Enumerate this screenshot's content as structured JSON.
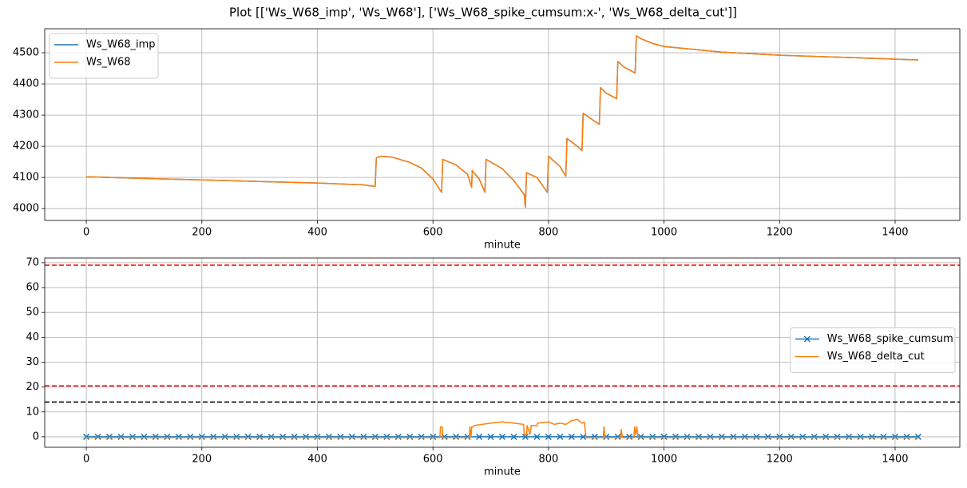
{
  "title": "Plot [['Ws_W68_imp', 'Ws_W68'], ['Ws_W68_spike_cumsum:x-', 'Ws_W68_delta_cut']]",
  "chart_data": [
    {
      "type": "line",
      "xlabel": "minute",
      "xlim": [
        -72,
        1512
      ],
      "ylim": [
        3962,
        4577
      ],
      "xticks": [
        0,
        200,
        400,
        600,
        800,
        1000,
        1200,
        1400
      ],
      "yticks": [
        4000,
        4100,
        4200,
        4300,
        4400,
        4500
      ],
      "grid": true,
      "legend": "upper left",
      "x": [
        0,
        100,
        200,
        300,
        400,
        480,
        500,
        502,
        510,
        530,
        560,
        580,
        600,
        615,
        617,
        640,
        660,
        667,
        668,
        680,
        690,
        692,
        720,
        740,
        758,
        760,
        762,
        780,
        798,
        800,
        820,
        830,
        832,
        850,
        858,
        860,
        880,
        888,
        890,
        900,
        918,
        920,
        930,
        950,
        952,
        960,
        980,
        1000,
        1100,
        1200,
        1300,
        1440
      ],
      "series": [
        {
          "name": "Ws_W68_imp",
          "color": "#1f77b4",
          "values": [
            4102,
            4097,
            4092,
            4087,
            4082,
            4076,
            4071,
            4163,
            4168,
            4165,
            4148,
            4130,
            4095,
            4052,
            4158,
            4140,
            4110,
            4068,
            4122,
            4095,
            4052,
            4158,
            4128,
            4090,
            4045,
            4005,
            4115,
            4100,
            4052,
            4168,
            4135,
            4104,
            4225,
            4200,
            4186,
            4306,
            4280,
            4270,
            4388,
            4370,
            4353,
            4472,
            4455,
            4435,
            4554,
            4545,
            4530,
            4520,
            4502,
            4492,
            4486,
            4477
          ]
        },
        {
          "name": "Ws_W68",
          "color": "#ff7f0e",
          "values": [
            4102,
            4097,
            4092,
            4087,
            4082,
            4076,
            4071,
            4163,
            4168,
            4165,
            4148,
            4130,
            4095,
            4052,
            4158,
            4140,
            4110,
            4068,
            4122,
            4095,
            4052,
            4158,
            4128,
            4090,
            4045,
            4005,
            4115,
            4100,
            4052,
            4168,
            4135,
            4104,
            4225,
            4200,
            4186,
            4306,
            4280,
            4270,
            4388,
            4370,
            4353,
            4472,
            4455,
            4435,
            4554,
            4545,
            4530,
            4520,
            4502,
            4492,
            4486,
            4477
          ]
        }
      ]
    },
    {
      "type": "line",
      "xlabel": "minute",
      "xlim": [
        -72,
        1512
      ],
      "ylim": [
        -4.2,
        71.9
      ],
      "xticks": [
        0,
        200,
        400,
        600,
        800,
        1000,
        1200,
        1400
      ],
      "yticks": [
        0,
        10,
        20,
        30,
        40,
        50,
        60,
        70
      ],
      "grid": true,
      "legend": "center right",
      "hlines": [
        {
          "value": 69,
          "color": "#ff0000"
        },
        {
          "value": 20.5,
          "color": "#ff0000"
        },
        {
          "value": 14,
          "color": "#000000"
        }
      ],
      "series": [
        {
          "name": "Ws_W68_spike_cumsum",
          "color": "#1f77b4",
          "marker": "x",
          "x": [
            0,
            20,
            40,
            60,
            80,
            100,
            120,
            140,
            160,
            180,
            200,
            220,
            240,
            260,
            280,
            300,
            320,
            340,
            360,
            380,
            400,
            420,
            440,
            460,
            480,
            500,
            520,
            540,
            560,
            580,
            600,
            620,
            640,
            660,
            680,
            700,
            720,
            740,
            760,
            780,
            800,
            820,
            840,
            860,
            880,
            900,
            920,
            940,
            960,
            980,
            1000,
            1020,
            1040,
            1060,
            1080,
            1100,
            1120,
            1140,
            1160,
            1180,
            1200,
            1220,
            1240,
            1260,
            1280,
            1300,
            1320,
            1340,
            1360,
            1380,
            1400,
            1420,
            1440
          ],
          "values": [
            0,
            0,
            0,
            0,
            0,
            0,
            0,
            0,
            0,
            0,
            0,
            0,
            0,
            0,
            0,
            0,
            0,
            0,
            0,
            0,
            0,
            0,
            0,
            0,
            0,
            0,
            0,
            0,
            0,
            0,
            0,
            0,
            0,
            0,
            0,
            0,
            0,
            0,
            0,
            0,
            0,
            0,
            0,
            0,
            0,
            0,
            0,
            0,
            0,
            0,
            0,
            0,
            0,
            0,
            0,
            0,
            0,
            0,
            0,
            0,
            0,
            0,
            0,
            0,
            0,
            0,
            0,
            0,
            0,
            0,
            0,
            0,
            0
          ]
        },
        {
          "name": "Ws_W68_delta_cut",
          "color": "#ff7f0e",
          "x": [
            0,
            612,
            613,
            616,
            617,
            663,
            664,
            666,
            667,
            670,
            671,
            700,
            720,
            740,
            757,
            758,
            762,
            763,
            768,
            770,
            780,
            781,
            800,
            810,
            820,
            830,
            840,
            850,
            858,
            862,
            865,
            895,
            896,
            898,
            925,
            926,
            928,
            948,
            949,
            951,
            953,
            955,
            1440
          ],
          "values": [
            -0.3,
            -0.3,
            4,
            4,
            -0.3,
            -0.3,
            4,
            -0.3,
            4,
            4,
            4.5,
            5.5,
            6,
            5.5,
            5,
            1,
            1,
            4.5,
            1,
            4.5,
            4.5,
            5.5,
            6,
            5,
            5.5,
            5,
            6.5,
            7,
            5.5,
            6,
            -0.3,
            -0.3,
            4,
            -0.3,
            -0.3,
            3,
            -0.3,
            -0.3,
            4,
            1,
            4,
            -0.3,
            -0.3
          ]
        }
      ]
    }
  ]
}
